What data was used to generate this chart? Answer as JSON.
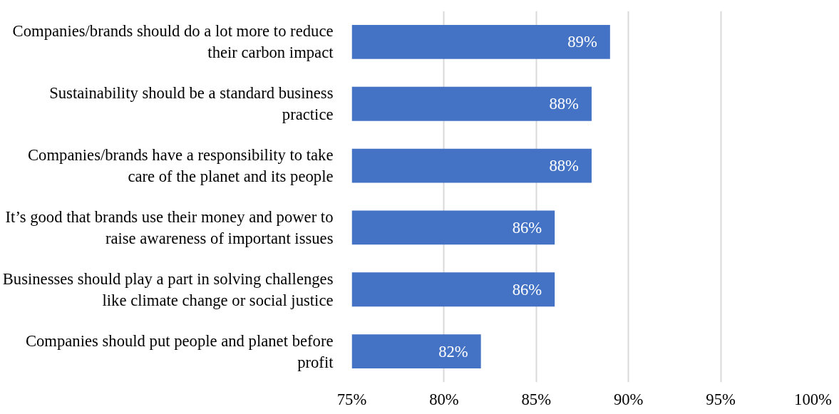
{
  "chart_data": {
    "type": "bar",
    "orientation": "horizontal",
    "categories": [
      "Companies/brands should do a lot more to reduce\ntheir carbon impact",
      "Sustainability should be a standard business\npractice",
      "Companies/brands have a responsibility to take\ncare of the planet and its people",
      "It’s good that brands use their money and power to\nraise awareness of important issues",
      "Businesses should play a part in solving challenges\nlike climate change or social justice",
      "Companies should put people and planet before\nprofit"
    ],
    "values": [
      89,
      88,
      88,
      86,
      86,
      82
    ],
    "value_labels": [
      "89%",
      "88%",
      "88%",
      "86%",
      "86%",
      "82%"
    ],
    "color": "#4472c4",
    "xlim": [
      75,
      100
    ],
    "xticks": [
      {
        "value": 75,
        "label": "75%"
      },
      {
        "value": 80,
        "label": "80%"
      },
      {
        "value": 85,
        "label": "85%"
      },
      {
        "value": 90,
        "label": "90%"
      },
      {
        "value": 95,
        "label": "95%"
      },
      {
        "value": 100,
        "label": "100%"
      }
    ],
    "grid": "x"
  }
}
